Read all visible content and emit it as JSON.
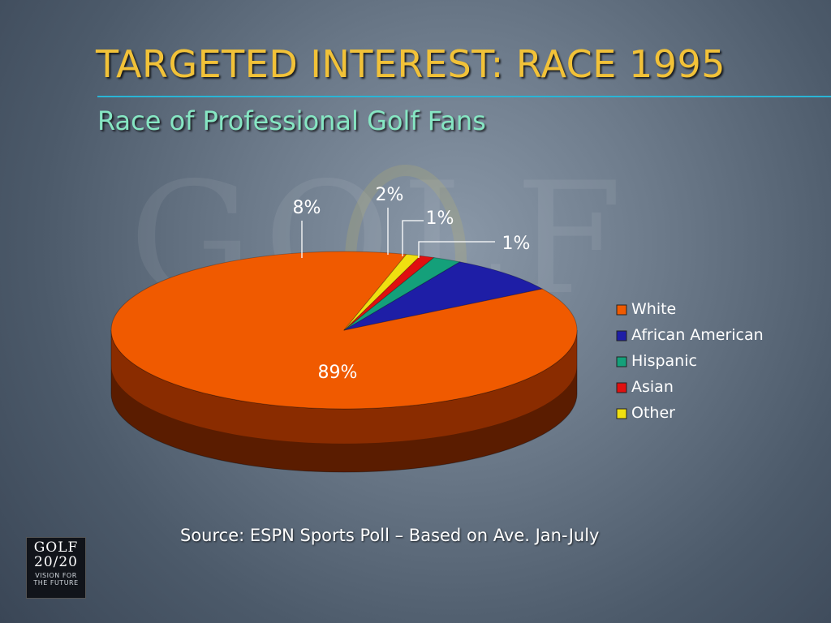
{
  "title": "TARGETED INTEREST: RACE 1995",
  "subtitle": "Race of Professional Golf Fans",
  "source": "Source: ESPN Sports Poll – Based on Ave. Jan-July",
  "watermark": "GOLF",
  "logo": {
    "top": "GOLF",
    "mid": "20/20",
    "tag_line1": "VISION FOR",
    "tag_line2": "THE FUTURE"
  },
  "colors": {
    "title": "#f2c238",
    "subtitle": "#86e6c3",
    "rule": "#29b5d6"
  },
  "chart_data": {
    "type": "pie",
    "three_d": true,
    "legend_position": "right",
    "slices": [
      {
        "name": "White",
        "value": 89,
        "label": "89%",
        "color": "#f05a00",
        "side_color": "#8a2c00"
      },
      {
        "name": "African American",
        "value": 8,
        "label": "8%",
        "color": "#1e1ea6",
        "side_color": "#0e0e5a"
      },
      {
        "name": "Hispanic",
        "value": 2,
        "label": "2%",
        "color": "#14a07a",
        "side_color": "#0a5a44"
      },
      {
        "name": "Asian",
        "value": 1,
        "label": "1%",
        "color": "#e01010",
        "side_color": "#700808"
      },
      {
        "name": "Other",
        "value": 1,
        "label": "1%",
        "color": "#f0e010",
        "side_color": "#807808"
      }
    ]
  }
}
